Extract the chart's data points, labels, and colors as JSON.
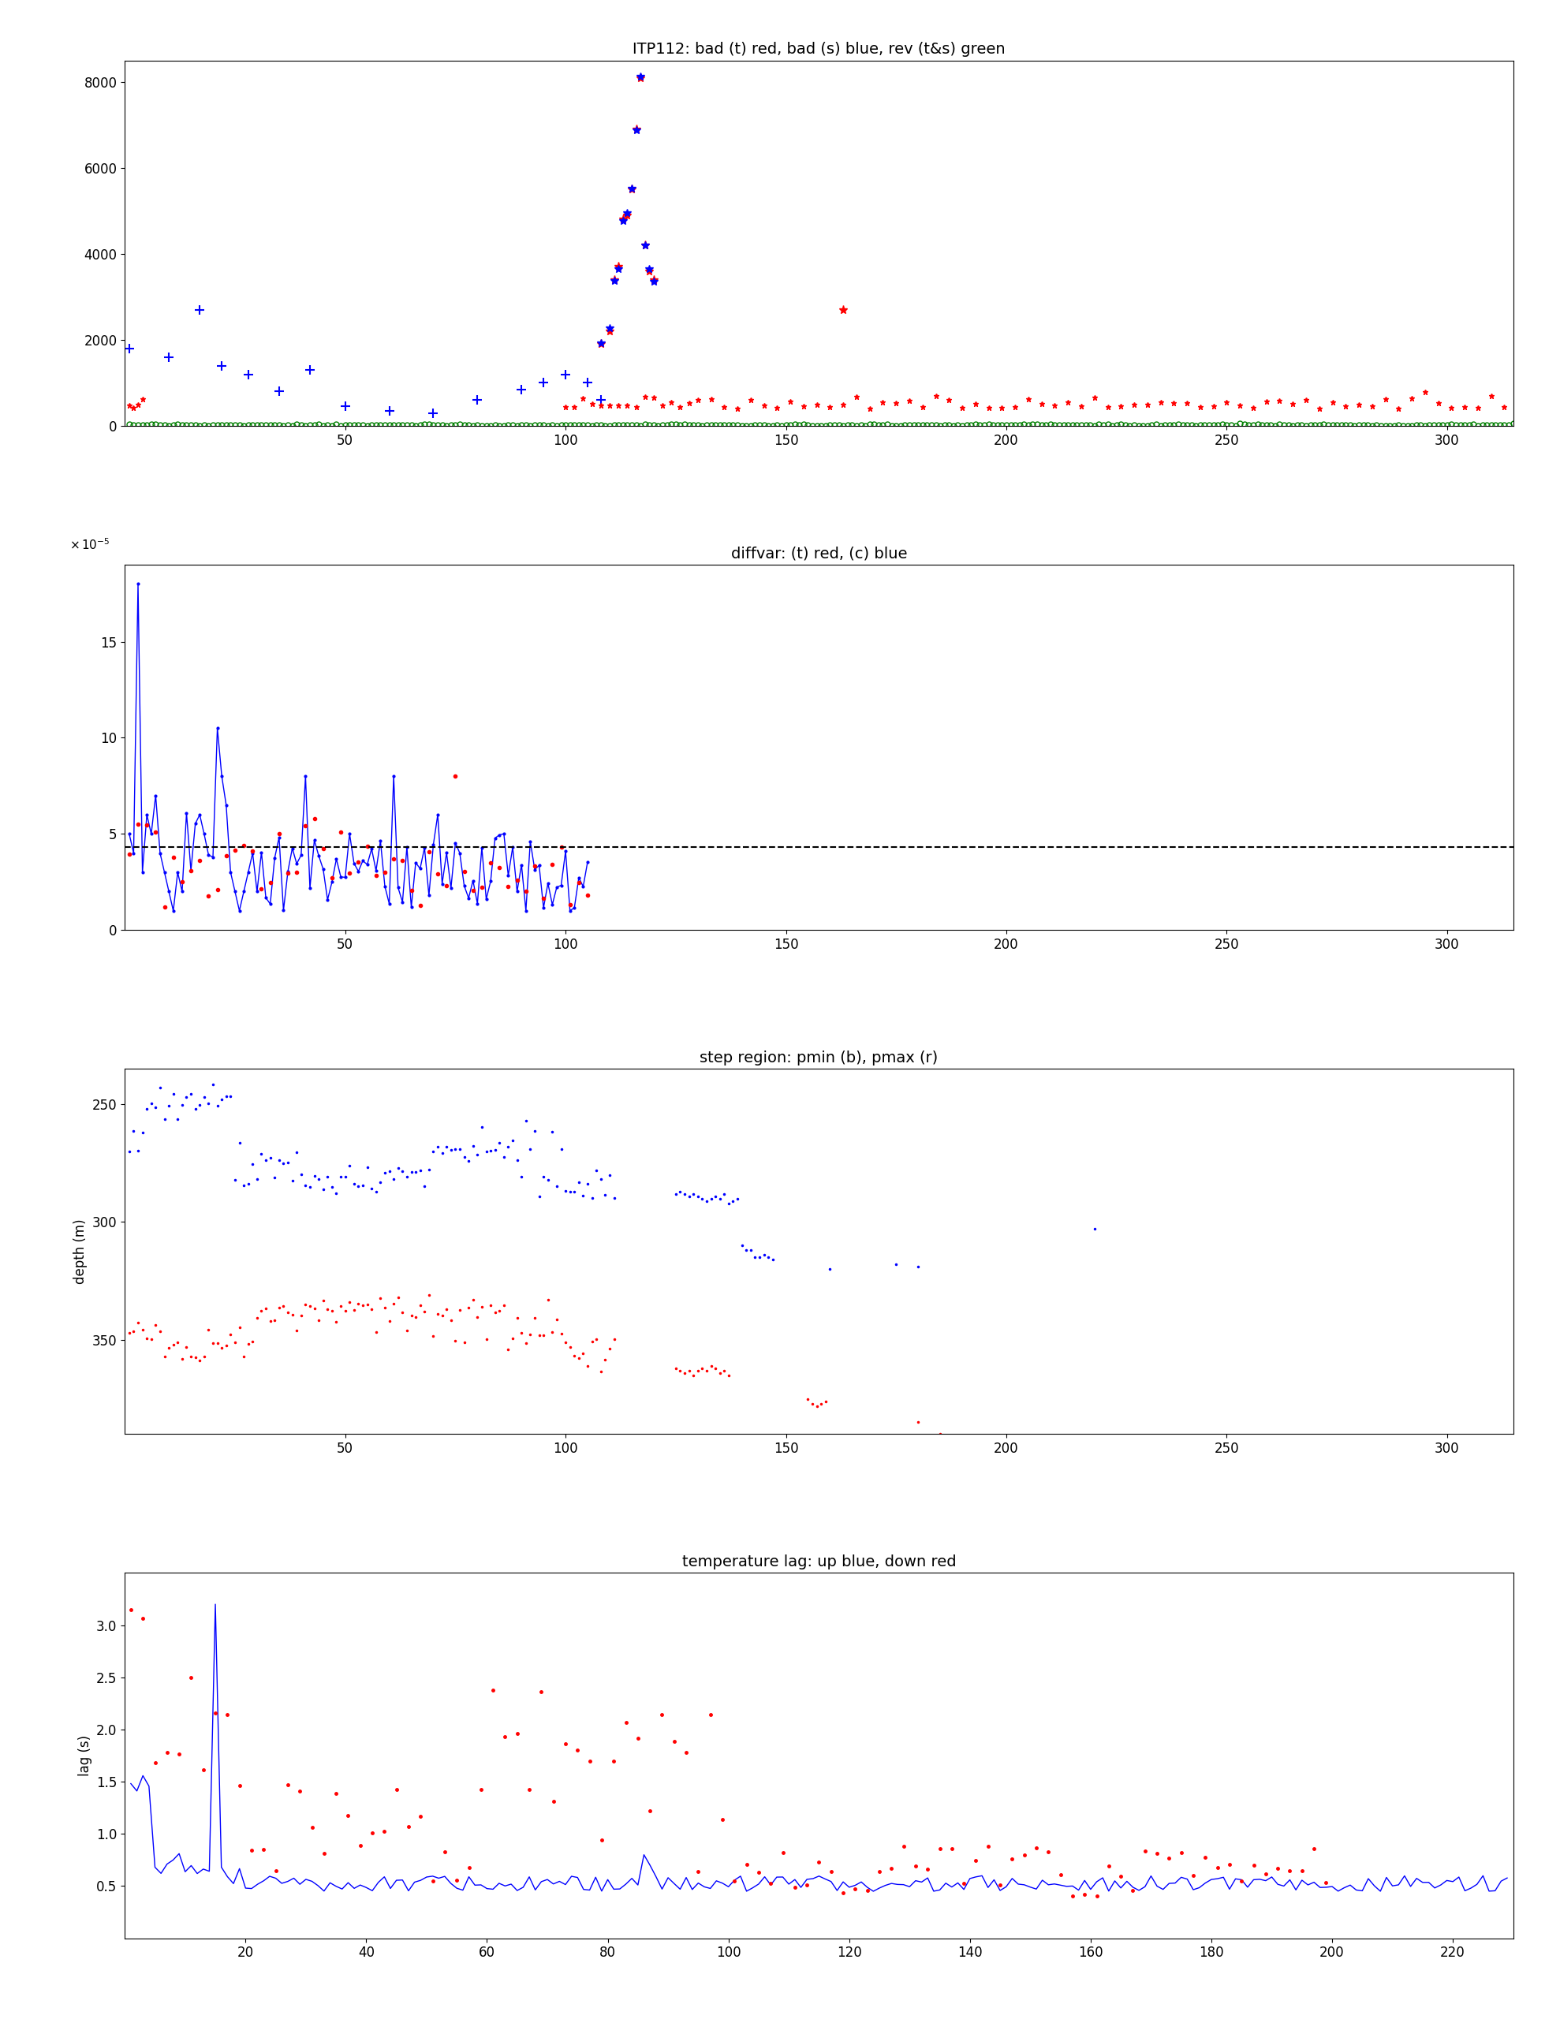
{
  "title1": "ITP112: bad (t) red, bad (s) blue, rev (t&s) green",
  "title2": "diffvar: (t) red, (c) blue",
  "title3": "step region: pmin (b), pmax (r)",
  "title4": "temperature lag: up blue, down red",
  "ylabel3": "depth (m)",
  "ylabel4": "lag (s)",
  "dashed_line_y": 4.3e-05,
  "background_color": "#ffffff"
}
